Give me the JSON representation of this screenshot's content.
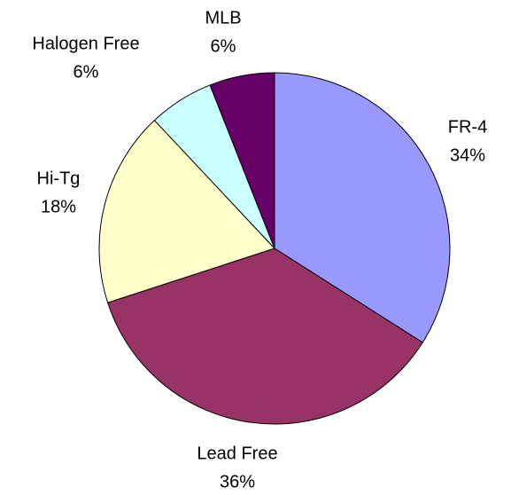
{
  "chart_data": {
    "type": "pie",
    "categories": [
      "FR-4",
      "Lead Free",
      "Hi-Tg",
      "Halogen Free",
      "MLB"
    ],
    "values": [
      34,
      36,
      18,
      6,
      6
    ],
    "value_labels": [
      "34%",
      "36%",
      "18%",
      "6%",
      "6%"
    ],
    "colors": [
      "#9999ff",
      "#993366",
      "#ffffcc",
      "#ccffff",
      "#660066"
    ]
  }
}
